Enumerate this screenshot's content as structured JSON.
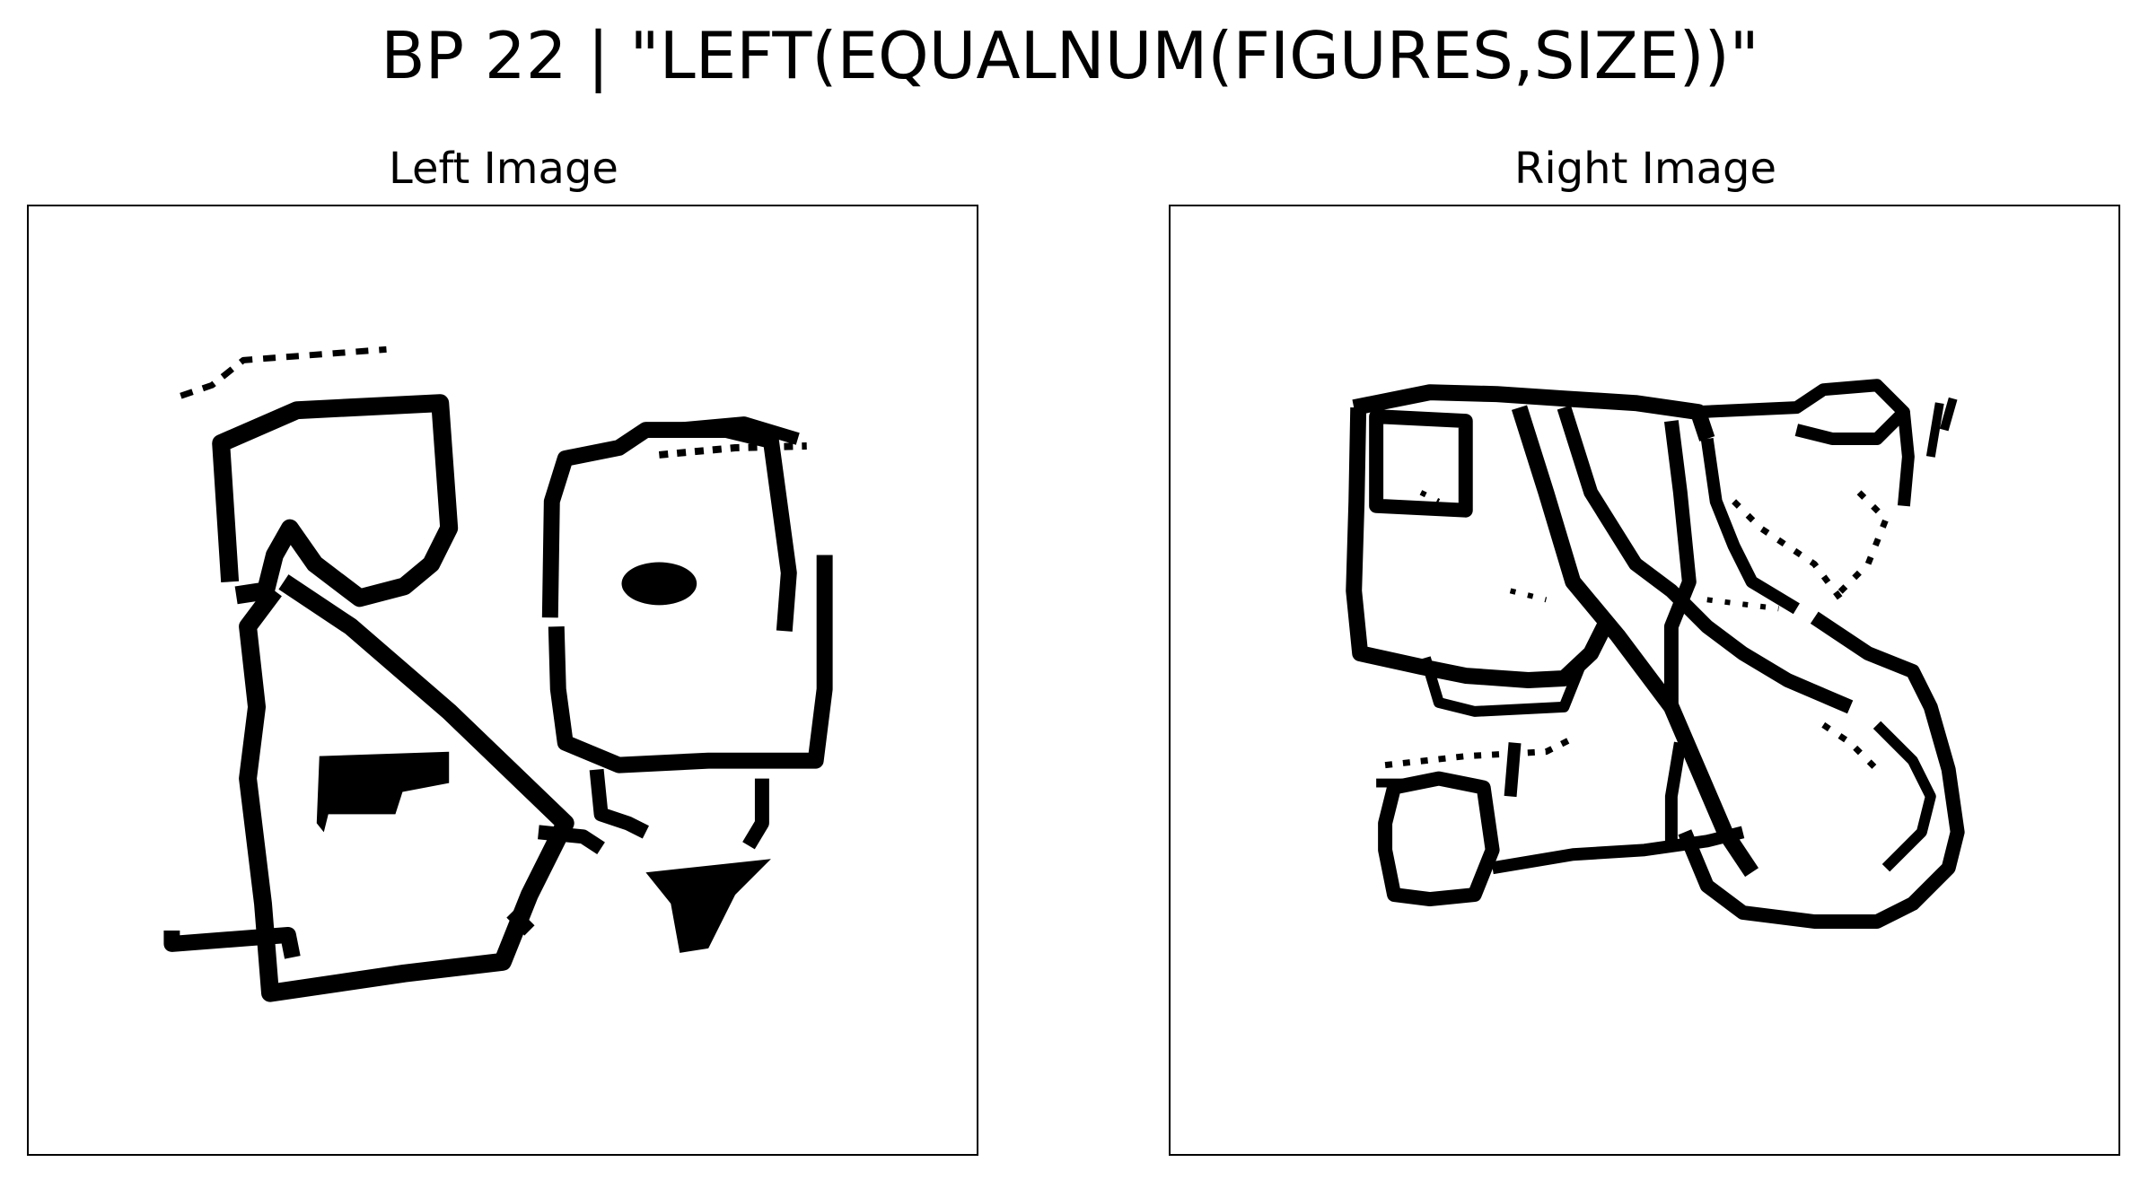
{
  "figure": {
    "title": "BP 22 | \"LEFT(EQUALNUM(FIGURES,SIZE))\"",
    "problem_number": 22,
    "rule": "LEFT(EQUALNUM(FIGURES,SIZE))",
    "ink_color": "#000000",
    "background_color": "#ffffff"
  },
  "panels": {
    "left": {
      "title": "Left Image",
      "description": "hand-drawn outlines: triangle, quadrilateral, dashed stroke, small filled shapes"
    },
    "right": {
      "title": "Right Image",
      "description": "hand-drawn overlapping outlines: square, elongated loop, irregular shapes, dotted strokes"
    }
  }
}
